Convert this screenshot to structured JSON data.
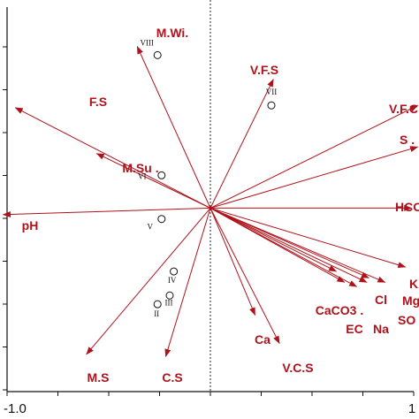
{
  "chart_data": {
    "type": "scatter",
    "subtype": "ordination-biplot",
    "title": "",
    "xlabel": "",
    "ylabel": "",
    "xlim": [
      -1.0,
      1.0
    ],
    "ylim": [
      -0.84,
      0.92
    ],
    "x_tick_labels": [
      "-1.0",
      "1"
    ],
    "zero_line": "vertical dotted at x = 0",
    "arrow_color": "#b0121b",
    "point_color": "#111111",
    "arrows": [
      {
        "label": "M.Wi.",
        "x": -0.36,
        "y": 0.74
      },
      {
        "label": "V.F.S",
        "x": 0.31,
        "y": 0.59
      },
      {
        "label": "F.S",
        "x": -0.96,
        "y": 0.46
      },
      {
        "label": "V.F.C",
        "x": 1.02,
        "y": 0.47
      },
      {
        "label": "M.Su .",
        "x": -0.56,
        "y": 0.25
      },
      {
        "label": "S .",
        "x": 1.02,
        "y": 0.28
      },
      {
        "label": "HCO",
        "x": 0.99,
        "y": 0.0
      },
      {
        "label": "pH",
        "x": -1.02,
        "y": -0.03
      },
      {
        "label": "K",
        "x": 0.96,
        "y": -0.27
      },
      {
        "label": "Mg",
        "x": 0.86,
        "y": -0.34
      },
      {
        "label": "Cl",
        "x": 0.78,
        "y": -0.32
      },
      {
        "label": "SO",
        "x": 0.77,
        "y": -0.34
      },
      {
        "label": "Na",
        "x": 0.72,
        "y": -0.36
      },
      {
        "label": "EC",
        "x": 0.66,
        "y": -0.34
      },
      {
        "label": "CaCO3 .",
        "x": 0.62,
        "y": -0.29
      },
      {
        "label": "Ca",
        "x": 0.22,
        "y": -0.49
      },
      {
        "label": "V.C.S",
        "x": 0.34,
        "y": -0.62
      },
      {
        "label": "M.S",
        "x": -0.61,
        "y": -0.67
      },
      {
        "label": "C.S",
        "x": -0.22,
        "y": -0.68
      }
    ],
    "points": [
      {
        "label": "VIII",
        "x": -0.26,
        "y": 0.7
      },
      {
        "label": "VII",
        "x": 0.3,
        "y": 0.47
      },
      {
        "label": "VI",
        "x": -0.24,
        "y": 0.15
      },
      {
        "label": "V",
        "x": -0.24,
        "y": -0.05
      },
      {
        "label": "IV",
        "x": -0.18,
        "y": -0.29
      },
      {
        "label": "III",
        "x": -0.2,
        "y": -0.4
      },
      {
        "label": "II",
        "x": -0.26,
        "y": -0.44
      }
    ]
  }
}
